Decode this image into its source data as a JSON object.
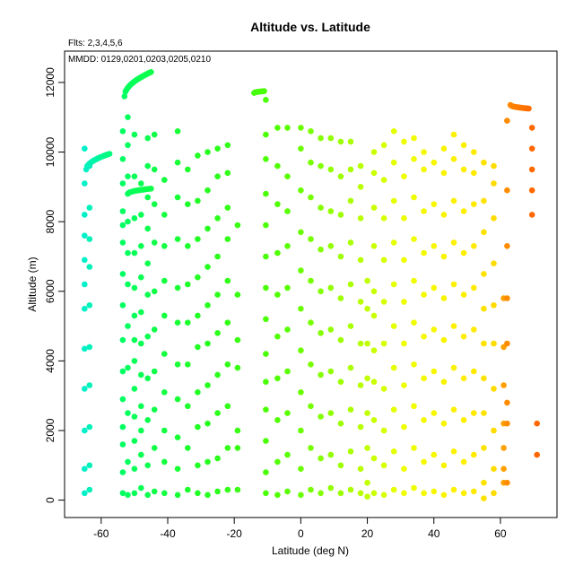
{
  "chart_data": {
    "type": "scatter",
    "title": "Altitude vs. Latitude",
    "annotations": [
      "Flts: 2,3,4,5,6",
      "MMDD: 0129,0201,0203,0205,0210"
    ],
    "xlabel": "Latitude (deg N)",
    "ylabel": "Altitude (m)",
    "xlim": [
      -71,
      77
    ],
    "ylim": [
      -500,
      12900
    ],
    "xticks": [
      -60,
      -40,
      -20,
      0,
      20,
      40,
      60
    ],
    "xtick_labels": [
      "-60",
      "-40",
      "-20",
      "0",
      "20",
      "40",
      "60"
    ],
    "yticks": [
      0,
      2000,
      4000,
      6000,
      8000,
      10000,
      12000
    ],
    "ytick_labels": [
      "0",
      "2000",
      "4000",
      "6000",
      "8000",
      "10000",
      "12000"
    ],
    "grid": false,
    "color_scale": "latitude: cyan (south) → green → yellow → orange (north)",
    "colors": {
      "lat_-65": "#00f0c8",
      "lat_-55": "#00ff66",
      "lat_-30": "#22ff22",
      "lat_-5": "#55ff00",
      "lat_15": "#aaff00",
      "lat_30": "#eeff00",
      "lat_50": "#ffee00",
      "lat_62": "#ff8c00",
      "lat_70": "#ff6600"
    },
    "segments": [
      {
        "x0": -64.5,
        "x1": -57.5,
        "y0": 9500,
        "y1": 9950,
        "n": 22
      },
      {
        "x0": -53,
        "x1": -45,
        "y0": 11600,
        "y1": 12300,
        "n": 28
      },
      {
        "x0": -52,
        "x1": -45,
        "y0": 8800,
        "y1": 8950,
        "n": 16
      },
      {
        "x0": -14,
        "x1": -11,
        "y0": 11700,
        "y1": 11750,
        "n": 9
      },
      {
        "x0": 63,
        "x1": 68.5,
        "y0": 11350,
        "y1": 11250,
        "n": 18
      }
    ],
    "columns": [
      {
        "x": -65,
        "alts": [
          200,
          900,
          2000,
          3200,
          4350,
          5500,
          6200,
          6900,
          7600,
          8200,
          9100,
          10100
        ]
      },
      {
        "x": -63.5,
        "alts": [
          300,
          1000,
          2100,
          3300,
          4400,
          5600,
          6700,
          7500,
          8400,
          9600
        ]
      },
      {
        "x": -53.5,
        "alts": [
          200,
          800,
          1600,
          2100,
          2900,
          3700,
          4600,
          5600,
          6500,
          7400,
          7900,
          8300,
          9100,
          9800,
          10600
        ]
      },
      {
        "x": -52,
        "alts": [
          150,
          1100,
          2500,
          3800,
          5000,
          6200,
          7100,
          8000,
          9300,
          10200,
          11000
        ]
      },
      {
        "x": -50,
        "alts": [
          200,
          900,
          1700,
          2400,
          3200,
          4000,
          4600,
          5300,
          6100,
          7100,
          8100,
          9300,
          10500
        ]
      },
      {
        "x": -48,
        "alts": [
          350,
          1300,
          2000,
          2700,
          3600,
          4500,
          5400,
          6400,
          7300,
          8200,
          9100
        ]
      },
      {
        "x": -46,
        "alts": [
          150,
          1000,
          2300,
          3500,
          4700,
          5900,
          6800,
          7800,
          8700,
          9600,
          10400
        ]
      },
      {
        "x": -44,
        "alts": [
          250,
          1500,
          2600,
          3700,
          4900,
          6000,
          7400,
          8500,
          9500,
          10500
        ]
      },
      {
        "x": -41,
        "alts": [
          200,
          1100,
          2000,
          3100,
          4200,
          5300,
          6300,
          7300,
          8200,
          9200
        ]
      },
      {
        "x": -37,
        "alts": [
          150,
          900,
          1800,
          2900,
          3900,
          5100,
          6100,
          7500,
          8700,
          9700,
          10600
        ]
      },
      {
        "x": -34,
        "alts": [
          300,
          1500,
          2700,
          3900,
          5100,
          6200,
          7300,
          8500,
          9500
        ]
      },
      {
        "x": -31,
        "alts": [
          200,
          1000,
          2100,
          3100,
          4400,
          5300,
          6400,
          7500,
          8600,
          9900
        ]
      },
      {
        "x": -28,
        "alts": [
          150,
          1100,
          2200,
          3300,
          4500,
          5600,
          6700,
          7800,
          8900,
          10000
        ]
      },
      {
        "x": -25,
        "alts": [
          250,
          1200,
          2500,
          3600,
          4800,
          5900,
          7000,
          8100,
          9300,
          10100
        ]
      },
      {
        "x": -22,
        "alts": [
          300,
          1500,
          2700,
          3900,
          5100,
          6300,
          7500,
          8400,
          9400,
          10200
        ]
      },
      {
        "x": -19,
        "alts": [
          300,
          1500,
          2000,
          3800,
          4600,
          5900,
          7900
        ]
      },
      {
        "x": -10.5,
        "alts": [
          200,
          800,
          1700,
          2600,
          3400,
          4200,
          5200,
          6100,
          7000,
          7900,
          8800,
          9800,
          10500,
          11500
        ]
      },
      {
        "x": -7,
        "alts": [
          150,
          1100,
          2300,
          3500,
          4700,
          5900,
          7100,
          8500,
          9600,
          10700
        ]
      },
      {
        "x": -4,
        "alts": [
          250,
          1300,
          2500,
          3700,
          4900,
          6100,
          7300,
          8300,
          9300,
          10700
        ]
      },
      {
        "x": 0,
        "alts": [
          150,
          900,
          2000,
          3100,
          4300,
          5500,
          6600,
          7700,
          8900,
          10100,
          10700
        ]
      },
      {
        "x": 3,
        "alts": [
          300,
          1500,
          2700,
          3900,
          5100,
          6300,
          7500,
          8700,
          9700,
          10600
        ]
      },
      {
        "x": 6,
        "alts": [
          200,
          1200,
          2400,
          3600,
          4800,
          6000,
          7200,
          8400,
          9600,
          10400
        ]
      },
      {
        "x": 9,
        "alts": [
          350,
          1300,
          2500,
          3700,
          4900,
          6100,
          7300,
          8300,
          9500,
          10400
        ]
      },
      {
        "x": 12,
        "alts": [
          200,
          1000,
          2200,
          3400,
          4600,
          5800,
          7000,
          8200,
          9300,
          10300
        ]
      },
      {
        "x": 15,
        "alts": [
          300,
          1400,
          2600,
          3800,
          5000,
          6200,
          7400,
          8600,
          9500,
          10300
        ]
      },
      {
        "x": 18,
        "alts": [
          200,
          900,
          2100,
          3300,
          4500,
          5700,
          6900,
          8100,
          9000,
          9600
        ]
      },
      {
        "x": 20,
        "alts": [
          100,
          500,
          1500,
          2500,
          3500,
          4500,
          5500,
          6300
        ]
      },
      {
        "x": 22,
        "alts": [
          200,
          1200,
          2300,
          3400,
          4300,
          5300,
          6000,
          7300,
          8400,
          9400,
          10000
        ]
      },
      {
        "x": 25,
        "alts": [
          150,
          1000,
          2000,
          3200,
          4500,
          5700,
          6900,
          8100,
          9200,
          10200
        ]
      },
      {
        "x": 28,
        "alts": [
          300,
          1400,
          2600,
          3800,
          5000,
          6200,
          7400,
          8600,
          9700,
          10600
        ]
      },
      {
        "x": 31,
        "alts": [
          200,
          900,
          2100,
          3300,
          4500,
          5700,
          6900,
          8100,
          9300,
          10300
        ]
      },
      {
        "x": 34,
        "alts": [
          350,
          1500,
          2700,
          3900,
          5100,
          6300,
          7500,
          8700,
          9800,
          10400
        ]
      },
      {
        "x": 37,
        "alts": [
          200,
          1100,
          2300,
          3500,
          4700,
          5900,
          7100,
          8300,
          9500,
          10000
        ]
      },
      {
        "x": 40,
        "alts": [
          250,
          1300,
          2500,
          3700,
          4900,
          6100,
          7300,
          8500,
          9700
        ]
      },
      {
        "x": 43,
        "alts": [
          150,
          1000,
          2200,
          3400,
          4600,
          5800,
          7000,
          8200,
          9400,
          10100
        ]
      },
      {
        "x": 46,
        "alts": [
          300,
          1400,
          2600,
          3800,
          5000,
          6200,
          7400,
          8600,
          9800,
          10500
        ]
      },
      {
        "x": 49,
        "alts": [
          200,
          1100,
          2300,
          3500,
          4700,
          5900,
          7100,
          8300,
          9500,
          10200
        ]
      },
      {
        "x": 52,
        "alts": [
          250,
          1300,
          2500,
          3700,
          4900,
          6100,
          7300,
          8500,
          9400,
          10000
        ]
      },
      {
        "x": 55,
        "alts": [
          50,
          500,
          1500,
          2500,
          3500,
          4500,
          5500,
          6500,
          7700,
          8600,
          9700
        ]
      },
      {
        "x": 58,
        "alts": [
          200,
          900,
          2000,
          3200,
          4500,
          5600,
          6800,
          8100,
          9100,
          9600
        ]
      },
      {
        "x": 61,
        "alts": [
          500,
          900,
          1500,
          2200,
          3300,
          4400,
          5800
        ]
      },
      {
        "x": 62,
        "alts": [
          500,
          2200,
          2800,
          4500,
          5800,
          7300,
          8900,
          10900
        ]
      },
      {
        "x": 69.5,
        "alts": [
          8200,
          8900,
          9500,
          10100,
          10700
        ]
      },
      {
        "x": 71,
        "alts": [
          1300,
          2200
        ]
      }
    ]
  }
}
